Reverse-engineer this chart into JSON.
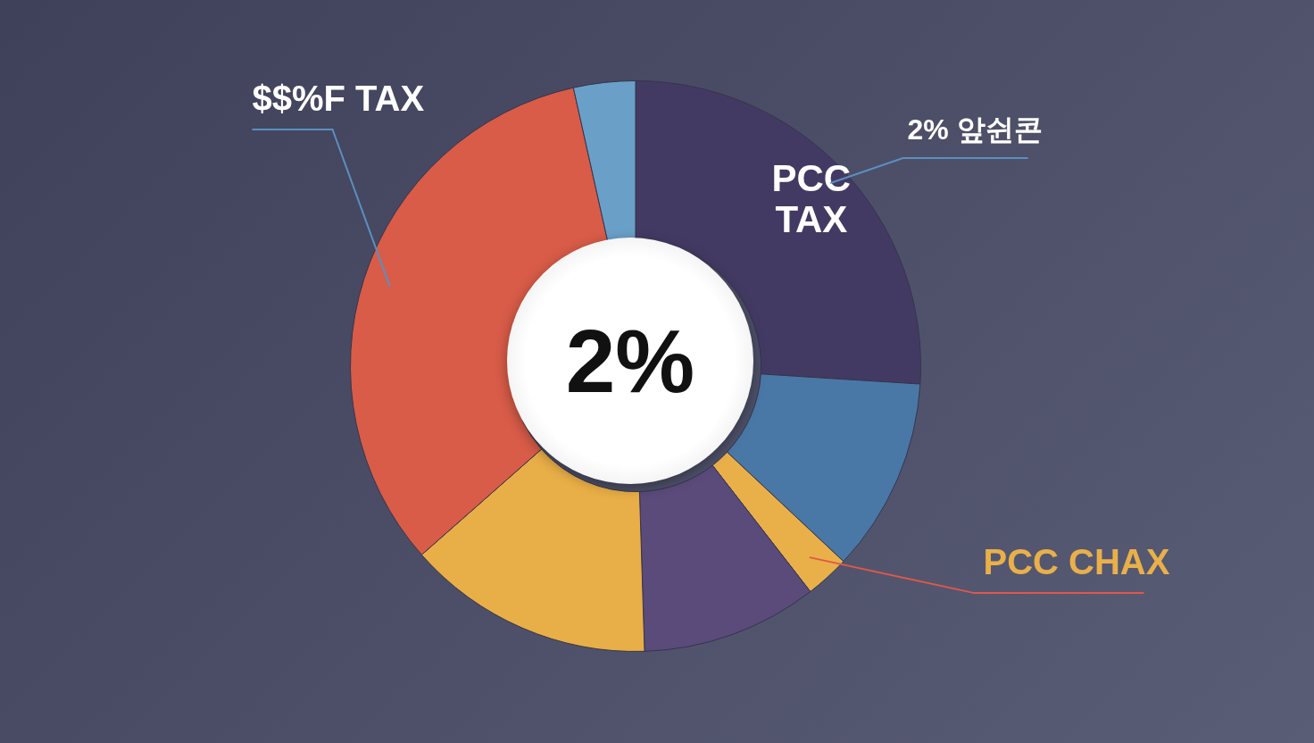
{
  "chart_data": {
    "type": "donut",
    "categories": [
      "PCC TAX",
      null,
      "PCC CHAX",
      null,
      null,
      "$$%F TAX",
      null
    ],
    "values": [
      26,
      11,
      2.5,
      10,
      14,
      33,
      3.5
    ],
    "colors": [
      "#433a63",
      "#4a78a6",
      "#e9b04a",
      "#5a4b7a",
      "#e8ae47",
      "#d85c48",
      "#6aa0c8"
    ],
    "annotations": [
      "2% 앞쉰콘",
      "2%"
    ],
    "legend": false
  }
}
